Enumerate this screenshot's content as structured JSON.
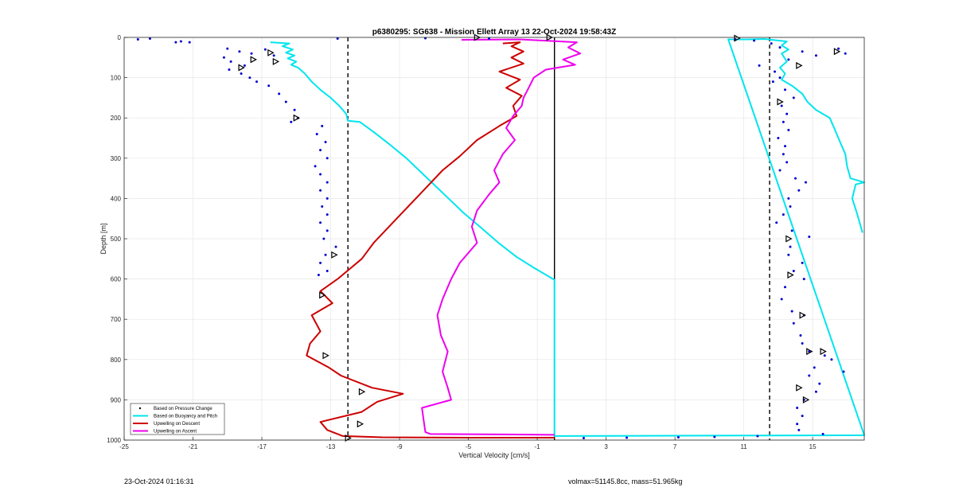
{
  "chart_data": {
    "type": "scatter",
    "title": "p6380295: SG638 - Mission Ellett Array 13 22-Oct-2024 19:58:43Z",
    "xlabel": "Vertical Velocity [cm/s]",
    "ylabel": "Depth [m]",
    "xlim": [
      -25,
      18
    ],
    "ylim": [
      1000,
      0
    ],
    "y_reversed": true,
    "xticks": [
      -25,
      -21,
      -17,
      -13,
      -9,
      -5,
      -1,
      3,
      7,
      11,
      15
    ],
    "yticks": [
      0,
      100,
      200,
      300,
      400,
      500,
      600,
      700,
      800,
      900,
      1000
    ],
    "grid": true,
    "legend_position": "bottom-left",
    "reference_lines": [
      {
        "x": -12,
        "style": "dashed"
      },
      {
        "x": 0,
        "style": "solid"
      },
      {
        "x": 12.5,
        "style": "dashed"
      }
    ],
    "series": [
      {
        "name": "Based on Pressure Change",
        "kind": "markers",
        "color": "#0000cc",
        "points": [
          [
            -24.2,
            5
          ],
          [
            -23.5,
            3
          ],
          [
            -22,
            12
          ],
          [
            -21.7,
            10
          ],
          [
            -21.2,
            12
          ],
          [
            -19,
            28
          ],
          [
            -18.3,
            35
          ],
          [
            -17.6,
            40
          ],
          [
            -16.8,
            30
          ],
          [
            -16.3,
            45
          ],
          [
            -19.2,
            50
          ],
          [
            -18.8,
            60
          ],
          [
            -18,
            70
          ],
          [
            -18.9,
            80
          ],
          [
            -18.2,
            90
          ],
          [
            -17.7,
            100
          ],
          [
            -17.3,
            110
          ],
          [
            -16.6,
            120
          ],
          [
            -16,
            140
          ],
          [
            -15.6,
            160
          ],
          [
            -15.1,
            180
          ],
          [
            -14.9,
            200
          ],
          [
            -15.3,
            210
          ],
          [
            -13.5,
            220
          ],
          [
            -13.8,
            240
          ],
          [
            -13.3,
            260
          ],
          [
            -13.6,
            280
          ],
          [
            -13.2,
            300
          ],
          [
            -13.9,
            320
          ],
          [
            -13.6,
            340
          ],
          [
            -13.2,
            360
          ],
          [
            -13.6,
            380
          ],
          [
            -13.2,
            400
          ],
          [
            -13.5,
            420
          ],
          [
            -13.2,
            440
          ],
          [
            -13.6,
            460
          ],
          [
            -13.2,
            480
          ],
          [
            -13.4,
            500
          ],
          [
            -12.7,
            520
          ],
          [
            -13.3,
            540
          ],
          [
            -13.6,
            560
          ],
          [
            -13.2,
            580
          ],
          [
            -13.7,
            590
          ],
          [
            -12.6,
            3
          ],
          [
            -7.5,
            2
          ],
          [
            -3.8,
            3
          ],
          [
            10.5,
            5
          ],
          [
            11.6,
            8
          ],
          [
            12.6,
            15
          ],
          [
            13.1,
            25
          ],
          [
            14.4,
            35
          ],
          [
            15.2,
            45
          ],
          [
            16.5,
            28
          ],
          [
            16.9,
            40
          ],
          [
            13.6,
            55
          ],
          [
            11.9,
            70
          ],
          [
            12.8,
            85
          ],
          [
            13.1,
            100
          ],
          [
            12.7,
            110
          ],
          [
            13.4,
            130
          ],
          [
            13.9,
            150
          ],
          [
            13.2,
            170
          ],
          [
            13.5,
            190
          ],
          [
            13.3,
            210
          ],
          [
            13.6,
            230
          ],
          [
            13,
            250
          ],
          [
            13.4,
            270
          ],
          [
            13.3,
            290
          ],
          [
            13.5,
            310
          ],
          [
            13.1,
            330
          ],
          [
            14,
            350
          ],
          [
            14.6,
            360
          ],
          [
            14.2,
            380
          ],
          [
            13.6,
            400
          ],
          [
            13.7,
            420
          ],
          [
            13.3,
            440
          ],
          [
            12.9,
            460
          ],
          [
            13.8,
            480
          ],
          [
            14.8,
            495
          ],
          [
            13.7,
            520
          ],
          [
            13.6,
            540
          ],
          [
            14.4,
            560
          ],
          [
            13.9,
            580
          ],
          [
            14.5,
            600
          ],
          [
            13.4,
            620
          ],
          [
            13.2,
            650
          ],
          [
            13.8,
            680
          ],
          [
            14.5,
            690
          ],
          [
            13.9,
            710
          ],
          [
            14.3,
            740
          ],
          [
            14.4,
            760
          ],
          [
            14.8,
            780
          ],
          [
            15.7,
            790
          ],
          [
            16.1,
            800
          ],
          [
            15.1,
            820
          ],
          [
            14.8,
            840
          ],
          [
            15.4,
            860
          ],
          [
            16.8,
            830
          ],
          [
            15.2,
            880
          ],
          [
            14.5,
            900
          ],
          [
            14.1,
            920
          ],
          [
            14.4,
            940
          ],
          [
            14.1,
            960
          ],
          [
            14.2,
            975
          ],
          [
            15.6,
            985
          ],
          [
            1.7,
            995
          ],
          [
            4.2,
            994
          ],
          [
            7.2,
            993
          ],
          [
            9.3,
            992
          ],
          [
            11.8,
            990
          ]
        ]
      },
      {
        "name": "Based on Buoyancy and Pitch",
        "kind": "line",
        "color": "#00e5ee",
        "points": [
          [
            -16.5,
            12
          ],
          [
            -15.4,
            15
          ],
          [
            -15.8,
            22
          ],
          [
            -15.2,
            30
          ],
          [
            -15.6,
            38
          ],
          [
            -15.1,
            45
          ],
          [
            -15.5,
            52
          ],
          [
            -15.0,
            60
          ],
          [
            -15.3,
            68
          ],
          [
            -14.9,
            75
          ],
          [
            -14.5,
            90
          ],
          [
            -14.1,
            110
          ],
          [
            -13.6,
            130
          ],
          [
            -13.0,
            150
          ],
          [
            -12.5,
            170
          ],
          [
            -12.1,
            190
          ],
          [
            -12.0,
            207
          ],
          [
            -11.3,
            210
          ],
          [
            -10.5,
            235
          ],
          [
            -9.6,
            265
          ],
          [
            -8.6,
            300
          ],
          [
            -7.5,
            345
          ],
          [
            -6.4,
            390
          ],
          [
            -5.3,
            435
          ],
          [
            -4.2,
            475
          ],
          [
            -3.2,
            512
          ],
          [
            -2.2,
            545
          ],
          [
            -1.2,
            572
          ],
          [
            0,
            602
          ],
          [
            0,
            990
          ],
          [
            18,
            988
          ],
          [
            10.1,
            5
          ],
          [
            11.2,
            5
          ],
          [
            12.2,
            4
          ],
          [
            13.5,
            10
          ],
          [
            13.2,
            20
          ],
          [
            13.6,
            30
          ],
          [
            13.2,
            40
          ],
          [
            13.5,
            60
          ],
          [
            13.1,
            75
          ],
          [
            13.4,
            90
          ],
          [
            13.2,
            105
          ],
          [
            13.8,
            120
          ],
          [
            14.4,
            140
          ],
          [
            14.7,
            160
          ],
          [
            15.2,
            180
          ],
          [
            16.0,
            200
          ],
          [
            16.3,
            230
          ],
          [
            16.6,
            260
          ],
          [
            16.9,
            290
          ],
          [
            17.0,
            320
          ],
          [
            17.2,
            350
          ],
          [
            18.0,
            360
          ],
          [
            17.5,
            365
          ],
          [
            17.3,
            400
          ],
          [
            17.6,
            440
          ],
          [
            17.9,
            485
          ]
        ]
      },
      {
        "name": "Upwelling on Descent",
        "kind": "line",
        "color": "#cc0000",
        "points": [
          [
            -3,
            15
          ],
          [
            -2,
            12
          ],
          [
            -2.5,
            22
          ],
          [
            -1.8,
            35
          ],
          [
            -2.5,
            50
          ],
          [
            -1.8,
            65
          ],
          [
            -3.2,
            85
          ],
          [
            -2.0,
            105
          ],
          [
            -2.8,
            125
          ],
          [
            -1.9,
            145
          ],
          [
            -2.4,
            170
          ],
          [
            -2.2,
            195
          ],
          [
            -3.2,
            220
          ],
          [
            -4.5,
            255
          ],
          [
            -5.5,
            295
          ],
          [
            -6.5,
            330
          ],
          [
            -7.5,
            375
          ],
          [
            -8.5,
            420
          ],
          [
            -9.5,
            465
          ],
          [
            -10.5,
            510
          ],
          [
            -11.2,
            550
          ],
          [
            -12.6,
            600
          ],
          [
            -13.6,
            630
          ],
          [
            -12.9,
            660
          ],
          [
            -14.1,
            690
          ],
          [
            -13.6,
            730
          ],
          [
            -14.2,
            760
          ],
          [
            -14.4,
            790
          ],
          [
            -13.1,
            820
          ],
          [
            -12.4,
            840
          ],
          [
            -10.6,
            870
          ],
          [
            -8.8,
            885
          ],
          [
            -10.3,
            905
          ],
          [
            -11.2,
            930
          ],
          [
            -13.6,
            955
          ],
          [
            -13.2,
            975
          ],
          [
            -12.3,
            990
          ],
          [
            -10,
            993
          ],
          [
            -5,
            994
          ],
          [
            0,
            994
          ]
        ]
      },
      {
        "name": "Upwelling on Ascent",
        "kind": "line",
        "color": "#ee00ee",
        "points": [
          [
            -5.4,
            6
          ],
          [
            -2,
            5
          ],
          [
            1.3,
            12
          ],
          [
            0.8,
            25
          ],
          [
            1.5,
            40
          ],
          [
            0.5,
            55
          ],
          [
            1.2,
            68
          ],
          [
            -0.5,
            80
          ],
          [
            -1.2,
            100
          ],
          [
            -1.5,
            125
          ],
          [
            -1.8,
            150
          ],
          [
            -1.9,
            170
          ],
          [
            -2.4,
            195
          ],
          [
            -2.8,
            225
          ],
          [
            -2.3,
            255
          ],
          [
            -3.0,
            290
          ],
          [
            -3.5,
            330
          ],
          [
            -3.2,
            360
          ],
          [
            -3.8,
            390
          ],
          [
            -4.5,
            430
          ],
          [
            -4.8,
            470
          ],
          [
            -4.5,
            510
          ],
          [
            -5.5,
            560
          ],
          [
            -6.0,
            600
          ],
          [
            -6.5,
            650
          ],
          [
            -6.8,
            690
          ],
          [
            -6.6,
            740
          ],
          [
            -6.2,
            780
          ],
          [
            -6.5,
            830
          ],
          [
            -6.2,
            870
          ],
          [
            -6.0,
            900
          ],
          [
            -7.7,
            920
          ],
          [
            -7.6,
            950
          ],
          [
            -7.5,
            980
          ],
          [
            -7.2,
            985
          ],
          [
            -3,
            986
          ],
          [
            0,
            987
          ]
        ]
      },
      {
        "name": "",
        "kind": "triangles",
        "color": "#000000",
        "points": [
          [
            -16.5,
            38
          ],
          [
            -17.5,
            55
          ],
          [
            -16.2,
            60
          ],
          [
            -18.2,
            75
          ],
          [
            -15,
            200
          ],
          [
            -12.8,
            540
          ],
          [
            -13.5,
            640
          ],
          [
            -13.3,
            790
          ],
          [
            -11.2,
            880
          ],
          [
            -11.3,
            960
          ],
          [
            -12,
            995
          ],
          [
            -4.5,
            0
          ],
          [
            -0.3,
            0
          ],
          [
            10.6,
            2
          ],
          [
            14.2,
            70
          ],
          [
            13.1,
            160
          ],
          [
            13.6,
            500
          ],
          [
            13.7,
            590
          ],
          [
            14.4,
            690
          ],
          [
            14.8,
            780
          ],
          [
            15.6,
            780
          ],
          [
            14.6,
            900
          ],
          [
            16.4,
            35
          ],
          [
            14.2,
            870
          ]
        ]
      }
    ]
  },
  "footer": {
    "left": "23-Oct-2024 01:16:31",
    "right": "volmax=51145.8cc, mass=51.965kg"
  }
}
